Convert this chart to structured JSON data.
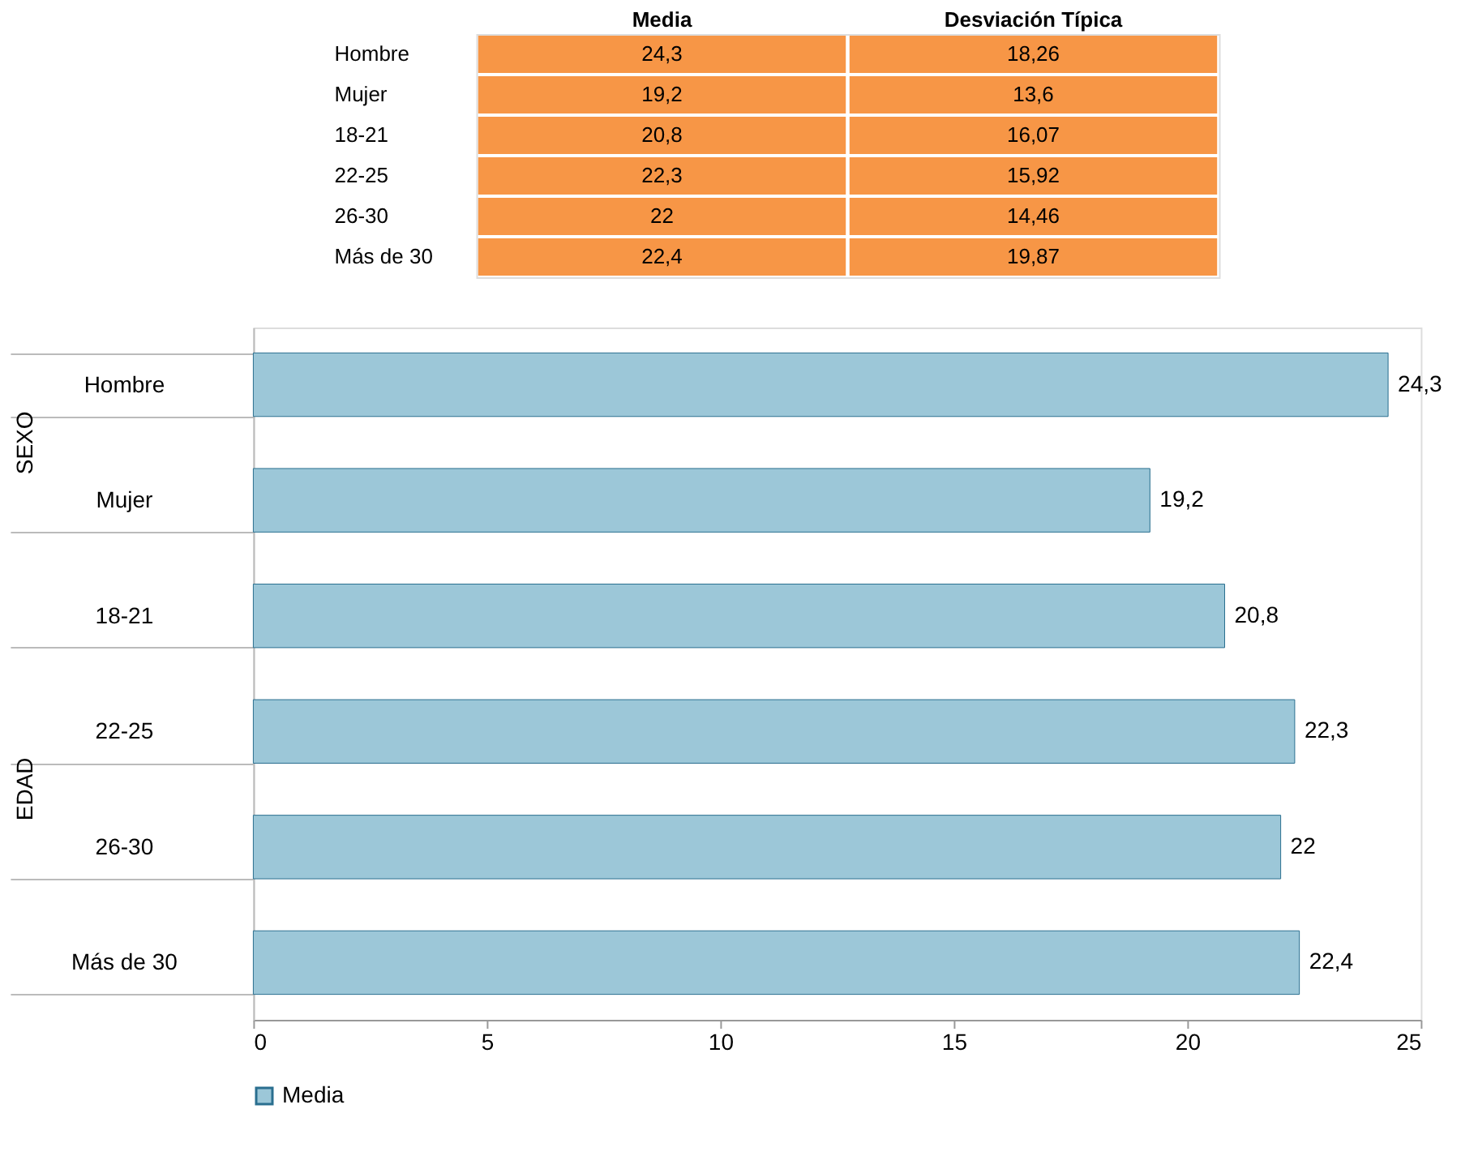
{
  "chart_data": [
    {
      "type": "other",
      "categories": [
        "Media",
        "Desviación Típica"
      ],
      "y_categories": [
        "Hombre",
        "Mujer",
        "18-21",
        "22-25",
        "26-30",
        "Más de 30"
      ],
      "color": "#f79646",
      "cell_labels": [
        [
          "24,3",
          "18,26"
        ],
        [
          "19,2",
          "13,6"
        ],
        [
          "20,8",
          "16,07"
        ],
        [
          "22,3",
          "15,92"
        ],
        [
          "22",
          "14,46"
        ],
        [
          "22,4",
          "19,87"
        ]
      ]
    },
    {
      "type": "bar",
      "orientation": "horizontal",
      "categories": [
        "Hombre",
        "Mujer",
        "18-21",
        "22-25",
        "26-30",
        "Más de 30"
      ],
      "series": [
        {
          "name": "Media",
          "color": "#9cc7d8",
          "values": [
            24.3,
            19.2,
            20.8,
            22.3,
            22,
            22.4
          ],
          "value_labels": [
            "24,3",
            "19,2",
            "20,8",
            "22,3",
            "22",
            "22,4"
          ]
        }
      ],
      "xlim": [
        0,
        25
      ],
      "xticks": [
        0,
        5,
        10,
        15,
        20,
        25
      ],
      "grid": false,
      "legend": "bottom",
      "annotations": [
        "SEXO",
        "EDAD"
      ]
    }
  ]
}
